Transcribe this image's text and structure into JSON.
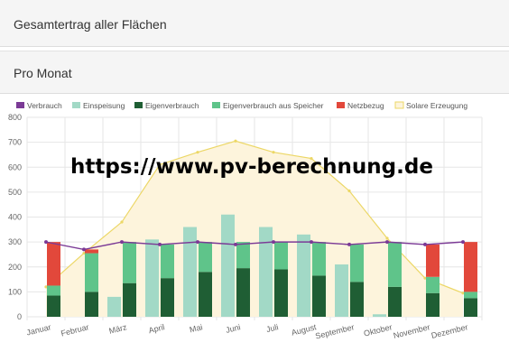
{
  "header": {
    "section_title": "Gesamtertrag aller Flächen",
    "chart_title": "Pro Monat"
  },
  "watermark": "https://www.pv-berechnung.de",
  "colors": {
    "verbrauch": "#7b3a96",
    "einspeisung": "#a2d9c6",
    "eigenverbrauch": "#1f5e34",
    "eigenverbrauch_speicher": "#5fc48a",
    "netzbezug": "#e2483b",
    "solar_fill": "#fdf4dc",
    "solar_line": "#ecd766",
    "grid": "#e6e6e6"
  },
  "chart_data": {
    "type": "bar",
    "categories": [
      "Januar",
      "Februar",
      "März",
      "April",
      "Mai",
      "Juni",
      "Juli",
      "August",
      "September",
      "Oktober",
      "November",
      "Dezember"
    ],
    "ylim": [
      0,
      800
    ],
    "yticks": [
      0,
      100,
      200,
      300,
      400,
      500,
      600,
      700,
      800
    ],
    "legend": [
      "Verbrauch",
      "Einspeisung",
      "Eigenverbrauch",
      "Eigenverbrauch aus Speicher",
      "Netzbezug",
      "Solare Erzeugung"
    ],
    "series": [
      {
        "name": "Verbrauch",
        "type": "line",
        "values": [
          300,
          270,
          300,
          290,
          300,
          290,
          300,
          300,
          290,
          300,
          290,
          300
        ]
      },
      {
        "name": "Einspeisung",
        "type": "bar",
        "values": [
          0,
          0,
          80,
          310,
          360,
          410,
          360,
          330,
          210,
          10,
          0,
          0
        ]
      },
      {
        "name": "Eigenverbrauch",
        "type": "stacked",
        "values": [
          85,
          100,
          135,
          155,
          180,
          195,
          190,
          165,
          140,
          120,
          95,
          75
        ]
      },
      {
        "name": "Eigenverbrauch aus Speicher",
        "type": "stacked",
        "values": [
          40,
          155,
          165,
          135,
          120,
          105,
          110,
          135,
          150,
          180,
          65,
          25
        ]
      },
      {
        "name": "Netzbezug",
        "type": "stacked",
        "values": [
          175,
          15,
          0,
          0,
          0,
          0,
          0,
          0,
          0,
          0,
          130,
          200
        ]
      },
      {
        "name": "Solare Erzeugung",
        "type": "area",
        "values": [
          120,
          255,
          380,
          610,
          660,
          705,
          660,
          635,
          505,
          315,
          155,
          95
        ]
      }
    ]
  }
}
